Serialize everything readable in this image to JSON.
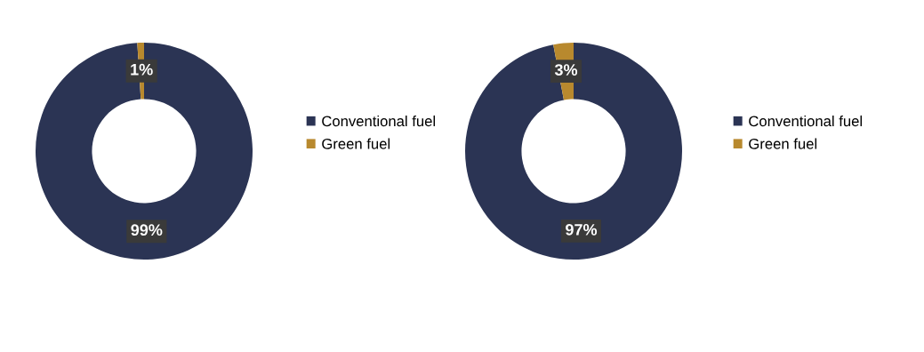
{
  "chart_data": [
    {
      "type": "donut",
      "categories": [
        "Conventional fuel",
        "Green fuel"
      ],
      "values": [
        99,
        1
      ],
      "colors": [
        "#2b3454",
        "#b8892e"
      ],
      "value_labels": [
        "99%",
        "1%"
      ],
      "legend": "right"
    },
    {
      "type": "donut",
      "categories": [
        "Conventional fuel",
        "Green fuel"
      ],
      "values": [
        97,
        3
      ],
      "colors": [
        "#2b3454",
        "#b8892e"
      ],
      "value_labels": [
        "97%",
        "3%"
      ],
      "legend": "right"
    }
  ]
}
